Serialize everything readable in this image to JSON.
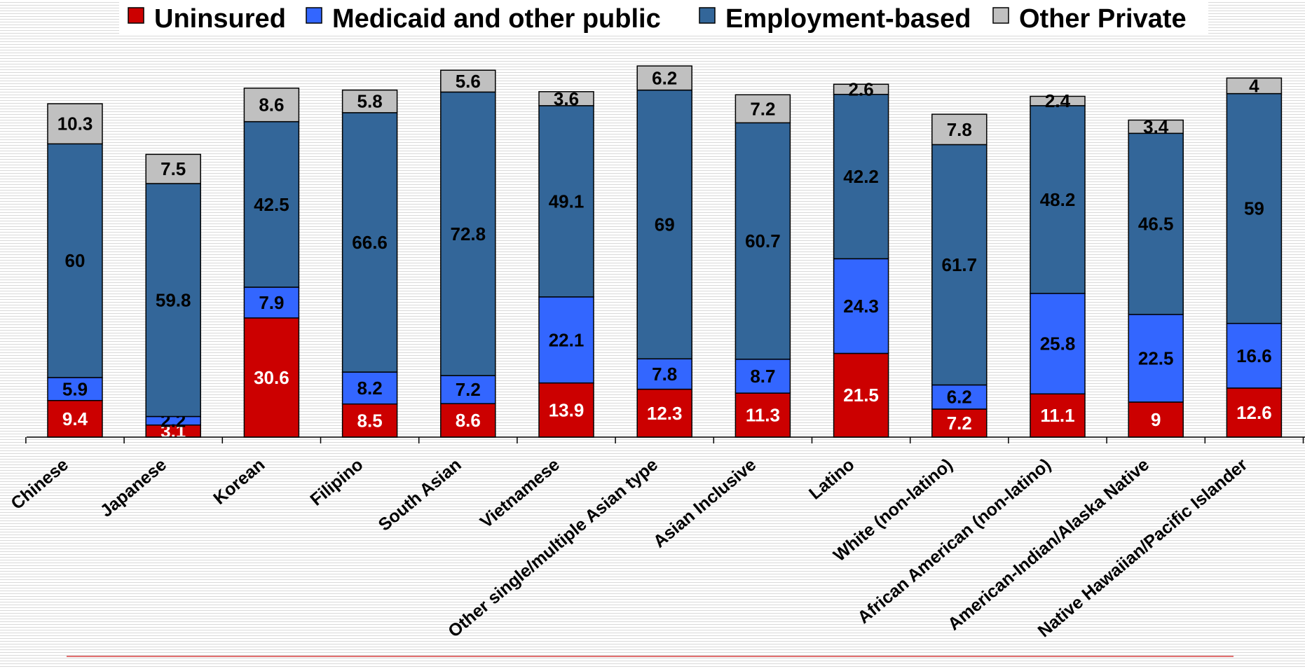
{
  "chart_data": {
    "type": "bar",
    "stacked": true,
    "categories": [
      "Chinese",
      "Japanese",
      "Korean",
      "Filipino",
      "South Asian",
      "Vietnamese",
      "Other single/multiple Asian type",
      "Asian Inclusive",
      "Latino",
      "White (non-latino)",
      "African American (non-latino)",
      "American-Indian/Alaska Native",
      "Native Hawaiian/Pacific Islander"
    ],
    "series": [
      {
        "name": "Uninsured",
        "color": "#cc0000",
        "values": [
          9.4,
          3.1,
          30.6,
          8.5,
          8.6,
          13.9,
          12.3,
          11.3,
          21.5,
          7.2,
          11.1,
          9,
          12.6
        ],
        "labels": [
          "9.4",
          "3.1",
          "30.6",
          "8.5",
          "8.6",
          "13.9",
          "12.3",
          "11.3",
          "21.5",
          "7.2",
          "11.1",
          "9",
          "12.6"
        ]
      },
      {
        "name": "Medicaid and other public",
        "color": "#3366ff",
        "values": [
          5.9,
          2.2,
          7.9,
          8.2,
          7.2,
          22.1,
          7.8,
          8.7,
          24.3,
          6.2,
          25.8,
          22.5,
          16.6
        ],
        "labels": [
          "5.9",
          "2.2",
          "7.9",
          "8.2",
          "7.2",
          "22.1",
          "7.8",
          "8.7",
          "24.3",
          "6.2",
          "25.8",
          "22.5",
          "16.6"
        ]
      },
      {
        "name": "Employment-based",
        "color": "#336699",
        "values": [
          60,
          59.8,
          42.5,
          66.6,
          72.8,
          49.1,
          69,
          60.7,
          42.2,
          61.7,
          48.2,
          46.5,
          59
        ],
        "labels": [
          "60",
          "59.8",
          "42.5",
          "66.6",
          "72.8",
          "49.1",
          "69",
          "60.7",
          "42.2",
          "61.7",
          "48.2",
          "46.5",
          "59"
        ]
      },
      {
        "name": "Other Private",
        "color": "#c0c0c0",
        "values": [
          10.3,
          7.5,
          8.6,
          5.8,
          5.6,
          3.6,
          6.2,
          7.2,
          2.6,
          7.8,
          2.4,
          3.4,
          4
        ],
        "labels": [
          "10.3",
          "7.5",
          "8.6",
          "5.8",
          "5.6",
          "3.6",
          "6.2",
          "7.2",
          "2.6",
          "7.8",
          "2.4",
          "3.4",
          "4"
        ]
      }
    ],
    "legend_position": "top",
    "grid": false,
    "title": "",
    "xlabel": "",
    "ylabel": ""
  }
}
